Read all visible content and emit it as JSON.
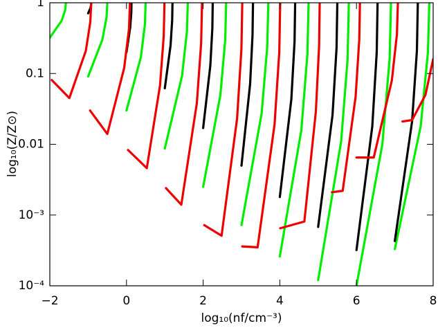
{
  "chart_data": {
    "type": "line",
    "xlabel": "log₁₀(nf/cm⁻³)",
    "ylabel": "log₁₀(Z/Z⊙)",
    "xlim": [
      -2,
      8
    ],
    "ylim": [
      0.0001,
      1
    ],
    "yscale": "log",
    "xticks": [
      {
        "value": -2,
        "label": "−2"
      },
      0,
      2,
      4,
      6,
      8
    ],
    "yticks": [
      {
        "value": 0.0001,
        "label": "10⁻⁴"
      },
      {
        "value": 0.001,
        "label": "10⁻³"
      },
      0.01,
      0.1,
      1
    ],
    "series": [
      {
        "color": "#00ee00",
        "x": [
          -2,
          -1.69,
          -1.6,
          -1.58
        ],
        "values": [
          0.32,
          0.56,
          0.79,
          1
        ]
      },
      {
        "color": "#00ee00",
        "x": [
          -1,
          -0.63,
          -0.52,
          -0.5
        ],
        "values": [
          0.091,
          0.3,
          0.62,
          1
        ]
      },
      {
        "color": "#00ee00",
        "x": [
          0,
          0.375,
          0.48,
          0.5
        ],
        "values": [
          0.03,
          0.17,
          0.49,
          1
        ]
      },
      {
        "color": "#00ee00",
        "x": [
          1,
          1.45,
          1.576,
          1.6
        ],
        "values": [
          0.0087,
          0.093,
          0.39,
          1
        ]
      },
      {
        "color": "#00ee00",
        "x": [
          2,
          2.45,
          2.576,
          2.6
        ],
        "values": [
          0.0025,
          0.05,
          0.3,
          1
        ]
      },
      {
        "color": "#00ee00",
        "x": [
          3,
          3.525,
          3.672,
          3.7
        ],
        "values": [
          0.00072,
          0.027,
          0.24,
          1
        ]
      },
      {
        "color": "#00ee00",
        "x": [
          4,
          4.5625,
          4.72,
          4.75
        ],
        "values": [
          0.00026,
          0.016,
          0.19,
          1
        ]
      },
      {
        "color": "#00ee00",
        "x": [
          5,
          5.6,
          5.768,
          5.8
        ],
        "values": [
          0.00012,
          0.011,
          0.16,
          1
        ]
      },
      {
        "color": "#00ee00",
        "x": [
          6,
          6.675,
          6.864,
          6.9
        ],
        "values": [
          0.0001,
          0.01,
          0.16,
          1
        ]
      },
      {
        "color": "#00ee00",
        "x": [
          7,
          7.675,
          7.864,
          7.9
        ],
        "values": [
          0.00033,
          0.018,
          0.2,
          1
        ]
      },
      {
        "color": "#000000",
        "x": [
          -1,
          -0.94,
          -0.923,
          -0.92
        ],
        "values": [
          0.71,
          0.84,
          0.93,
          1
        ]
      },
      {
        "color": "#000000",
        "x": [
          0,
          0.0975,
          0.125,
          0.13
        ],
        "values": [
          0.2,
          0.45,
          0.72,
          1
        ]
      },
      {
        "color": "#000000",
        "x": [
          1,
          1.15,
          1.192,
          1.2
        ],
        "values": [
          0.062,
          0.25,
          0.57,
          1
        ]
      },
      {
        "color": "#000000",
        "x": [
          2,
          2.1875,
          2.24,
          2.25
        ],
        "values": [
          0.017,
          0.13,
          0.44,
          1
        ]
      },
      {
        "color": "#000000",
        "x": [
          3,
          3.225,
          3.288,
          3.3
        ],
        "values": [
          0.005,
          0.071,
          0.35,
          1
        ]
      },
      {
        "color": "#000000",
        "x": [
          4,
          4.3,
          4.384,
          4.4
        ],
        "values": [
          0.0018,
          0.043,
          0.28,
          1
        ]
      },
      {
        "color": "#000000",
        "x": [
          5,
          5.375,
          5.48,
          5.5
        ],
        "values": [
          0.00068,
          0.026,
          0.23,
          1
        ]
      },
      {
        "color": "#000000",
        "x": [
          6,
          6.4125,
          6.528,
          6.55
        ],
        "values": [
          0.00032,
          0.018,
          0.2,
          1
        ]
      },
      {
        "color": "#000000",
        "x": [
          7,
          7.45,
          7.576,
          7.6
        ],
        "values": [
          0.00043,
          0.021,
          0.21,
          1
        ]
      },
      {
        "color": "#ee0000",
        "x": [
          -1.95,
          -1.49,
          -1.06,
          -0.943,
          -0.92
        ],
        "values": [
          0.081,
          0.045,
          0.21,
          0.54,
          1
        ]
      },
      {
        "color": "#ee0000",
        "x": [
          -0.95,
          -0.5,
          -0.06,
          0.066,
          0.09
        ],
        "values": [
          0.03,
          0.014,
          0.12,
          0.43,
          1
        ]
      },
      {
        "color": "#ee0000",
        "x": [
          0.04,
          0.53,
          0.875,
          0.972,
          0.99
        ],
        "values": [
          0.0083,
          0.0046,
          0.068,
          0.34,
          1
        ]
      },
      {
        "color": "#ee0000",
        "x": [
          1.03,
          1.43,
          1.835,
          1.948,
          1.97
        ],
        "values": [
          0.0024,
          0.0014,
          0.038,
          0.27,
          1
        ]
      },
      {
        "color": "#ee0000",
        "x": [
          2.03,
          2.48,
          2.885,
          2.998,
          3.02
        ],
        "values": [
          0.00072,
          0.00051,
          0.023,
          0.22,
          1
        ]
      },
      {
        "color": "#ee0000",
        "x": [
          3.02,
          3.42,
          3.8625,
          3.986,
          4.01
        ],
        "values": [
          0.00036,
          0.00035,
          0.019,
          0.2,
          1
        ]
      },
      {
        "color": "#ee0000",
        "x": [
          4.01,
          4.64,
          4.94,
          5.024,
          5.04
        ],
        "values": [
          0.00065,
          0.00081,
          0.029,
          0.24,
          1
        ]
      },
      {
        "color": "#ee0000",
        "x": [
          5.36,
          5.64,
          5.9775,
          6.072,
          6.09
        ],
        "values": [
          0.0021,
          0.0022,
          0.047,
          0.3,
          1
        ]
      },
      {
        "color": "#ee0000",
        "x": [
          6.0,
          6.45,
          6.9225,
          7.055,
          7.08
        ],
        "values": [
          0.0065,
          0.0065,
          0.08,
          0.36,
          1
        ]
      },
      {
        "color": "#ee0000",
        "x": [
          7.2,
          7.45,
          7.8,
          8.0
        ],
        "values": [
          0.021,
          0.022,
          0.05,
          0.16
        ]
      }
    ]
  }
}
